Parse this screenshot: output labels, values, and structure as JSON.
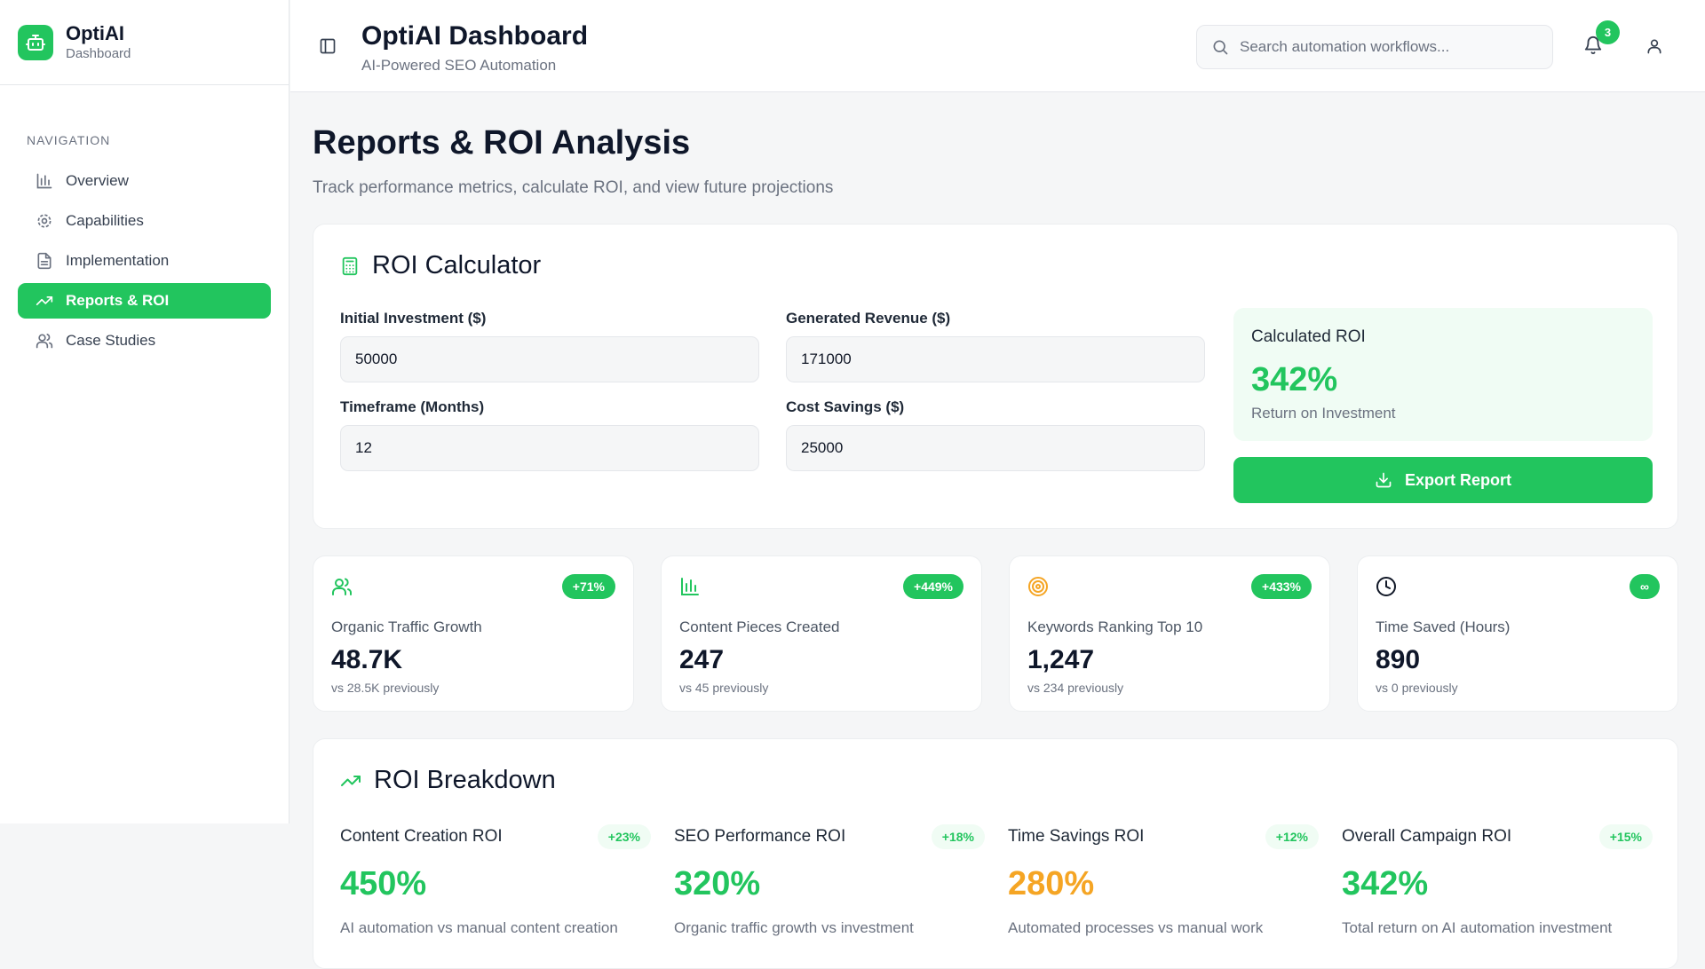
{
  "brand": {
    "name": "OptiAI",
    "subtitle": "Dashboard"
  },
  "sidebar": {
    "section_label": "NAVIGATION",
    "items": [
      {
        "label": "Overview",
        "icon": "bar-chart-icon",
        "active": false
      },
      {
        "label": "Capabilities",
        "icon": "gear-icon",
        "active": false
      },
      {
        "label": "Implementation",
        "icon": "document-icon",
        "active": false
      },
      {
        "label": "Reports & ROI",
        "icon": "trending-up-icon",
        "active": true
      },
      {
        "label": "Case Studies",
        "icon": "users-icon",
        "active": false
      }
    ]
  },
  "header": {
    "title": "OptiAI Dashboard",
    "subtitle": "AI-Powered SEO Automation",
    "search_placeholder": "Search automation workflows...",
    "notification_count": "3"
  },
  "page": {
    "title": "Reports & ROI Analysis",
    "subtitle": "Track performance metrics, calculate ROI, and view future projections"
  },
  "roi_calculator": {
    "title": "ROI Calculator",
    "fields": {
      "initial_investment": {
        "label": "Initial Investment ($)",
        "value": "50000"
      },
      "generated_revenue": {
        "label": "Generated Revenue ($)",
        "value": "171000"
      },
      "timeframe": {
        "label": "Timeframe (Months)",
        "value": "12"
      },
      "cost_savings": {
        "label": "Cost Savings ($)",
        "value": "25000"
      }
    },
    "result": {
      "label": "Calculated ROI",
      "value": "342%",
      "sublabel": "Return on Investment"
    },
    "export_label": "Export Report"
  },
  "stats": [
    {
      "label": "Organic Traffic Growth",
      "value": "48.7K",
      "previous": "vs 28.5K previously",
      "badge": "+71%",
      "icon": "users-icon"
    },
    {
      "label": "Content Pieces Created",
      "value": "247",
      "previous": "vs 45 previously",
      "badge": "+449%",
      "icon": "bar-chart-icon"
    },
    {
      "label": "Keywords Ranking Top 10",
      "value": "1,247",
      "previous": "vs 234 previously",
      "badge": "+433%",
      "icon": "target-icon"
    },
    {
      "label": "Time Saved (Hours)",
      "value": "890",
      "previous": "vs 0 previously",
      "badge": "∞",
      "icon": "clock-icon"
    }
  ],
  "roi_breakdown": {
    "title": "ROI Breakdown",
    "items": [
      {
        "name": "Content Creation ROI",
        "value": "450%",
        "change": "+23%",
        "description": "AI automation vs manual content creation",
        "color": "#22c55e"
      },
      {
        "name": "SEO Performance ROI",
        "value": "320%",
        "change": "+18%",
        "description": "Organic traffic growth vs investment",
        "color": "#22c55e"
      },
      {
        "name": "Time Savings ROI",
        "value": "280%",
        "change": "+12%",
        "description": "Automated processes vs manual work",
        "color": "#f5a524"
      },
      {
        "name": "Overall Campaign ROI",
        "value": "342%",
        "change": "+15%",
        "description": "Total return on AI automation investment",
        "color": "#22c55e"
      }
    ]
  },
  "colors": {
    "accent": "#22c55e",
    "warning": "#f5a524"
  }
}
